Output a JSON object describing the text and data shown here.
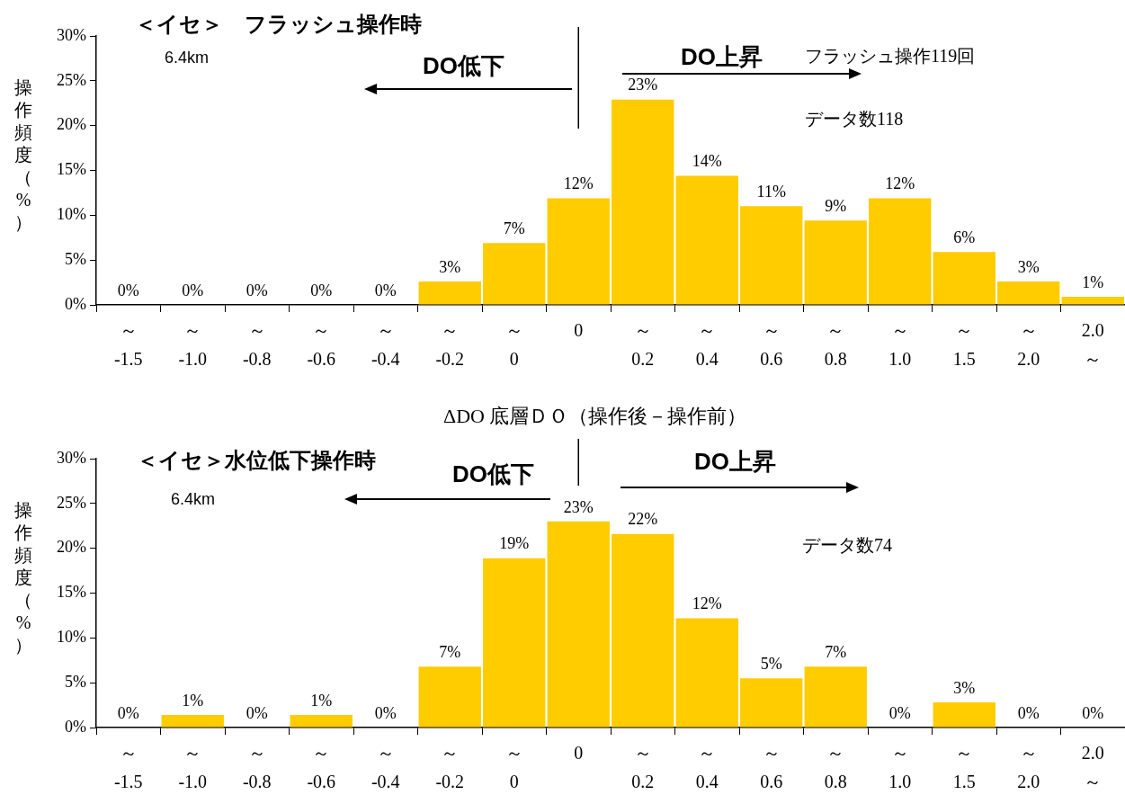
{
  "chart_data": [
    {
      "type": "bar",
      "title": "＜イセ＞　フラッシュ操作時",
      "xlabel": "ΔDO 底層ＤＯ（操作後－操作前）",
      "ylabel": "操作頻度（%）",
      "categories": [
        "～\n-1.5",
        "～\n-1.0",
        "～\n-0.8",
        "～\n-0.6",
        "～\n-0.4",
        "～\n-0.2",
        "～\n0",
        "0",
        "～\n0.2",
        "～\n0.4",
        "～\n0.6",
        "～\n0.8",
        "～\n1.0",
        "～\n1.5",
        "～\n2.0",
        "2.0\n～"
      ],
      "values": [
        0,
        0,
        0,
        0,
        0,
        2.6,
        6.9,
        11.9,
        22.9,
        14.4,
        11.0,
        9.4,
        11.9,
        5.9,
        2.6,
        0.9
      ],
      "value_labels": [
        "0%",
        "0%",
        "0%",
        "0%",
        "0%",
        "3%",
        "7%",
        "12%",
        "23%",
        "14%",
        "11%",
        "9%",
        "12%",
        "6%",
        "3%",
        "1%"
      ],
      "color": "#ffcc00",
      "ylim": [
        0,
        30
      ],
      "yticks": [
        {
          "value": 0,
          "label": "0%"
        },
        {
          "value": 5,
          "label": "5%"
        },
        {
          "value": 10,
          "label": "10%"
        },
        {
          "value": 15,
          "label": "15%"
        },
        {
          "value": 20,
          "label": "20%"
        },
        {
          "value": 25,
          "label": "25%"
        },
        {
          "value": 30,
          "label": "30%"
        }
      ],
      "ref_lines": [
        {
          "axis": "x",
          "value": "0"
        }
      ],
      "annotations": [
        "6.4km",
        "DO低下",
        "DO上昇",
        "フラッシュ操作119回",
        "データ数118"
      ]
    },
    {
      "type": "bar",
      "title": "＜イセ＞水位低下操作時",
      "ylabel": "操作頻度（%）",
      "categories": [
        "～\n-1.5",
        "～\n-1.0",
        "～\n-0.8",
        "～\n-0.6",
        "～\n-0.4",
        "～\n-0.2",
        "～\n0",
        "0",
        "～\n0.2",
        "～\n0.4",
        "～\n0.6",
        "～\n0.8",
        "～\n1.0",
        "～\n1.5",
        "～\n2.0",
        "2.0\n～"
      ],
      "values": [
        0,
        1.4,
        0,
        1.4,
        0,
        6.8,
        18.9,
        23.0,
        21.6,
        12.2,
        5.5,
        6.8,
        0,
        2.8,
        0,
        0
      ],
      "value_labels": [
        "0%",
        "1%",
        "0%",
        "1%",
        "0%",
        "7%",
        "19%",
        "23%",
        "22%",
        "12%",
        "5%",
        "7%",
        "0%",
        "3%",
        "0%",
        "0%"
      ],
      "color": "#ffcc00",
      "ylim": [
        0,
        30
      ],
      "yticks": [
        {
          "value": 0,
          "label": "0%"
        },
        {
          "value": 5,
          "label": "5%"
        },
        {
          "value": 10,
          "label": "10%"
        },
        {
          "value": 15,
          "label": "15%"
        },
        {
          "value": 20,
          "label": "20%"
        },
        {
          "value": 25,
          "label": "25%"
        },
        {
          "value": 30,
          "label": "30%"
        }
      ],
      "ref_lines": [
        {
          "axis": "x",
          "value": "0"
        }
      ],
      "annotations": [
        "6.4km",
        "DO低下",
        "DO上昇",
        "データ数74"
      ]
    }
  ]
}
